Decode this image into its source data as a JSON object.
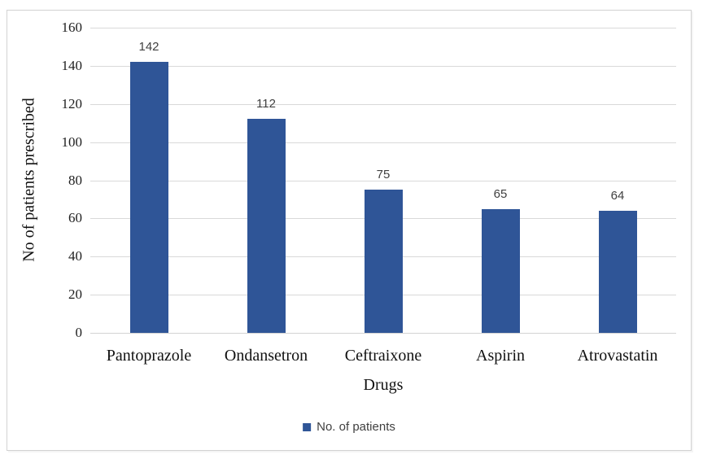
{
  "chart_data": {
    "type": "bar",
    "title": "",
    "categories": [
      "Pantoprazole",
      "Ondansetron",
      "Ceftraixone",
      "Aspirin",
      "Atrovastatin"
    ],
    "series": [
      {
        "name": "No. of patients",
        "values": [
          142,
          112,
          75,
          65,
          64
        ]
      }
    ],
    "data_labels": [
      142,
      112,
      75,
      65,
      64
    ],
    "xlabel": "Drugs",
    "ylabel": "No of patients prescribed",
    "ylim": [
      0,
      160
    ],
    "yticks": [
      0,
      20,
      40,
      60,
      80,
      100,
      120,
      140,
      160
    ],
    "grid": true,
    "legend": [
      "No. of patients"
    ],
    "legend_position": "bottom-center",
    "colors": {
      "bar": "#2f5597",
      "gridline": "#d9d9d9",
      "axis_line": "#d3d3d3",
      "data_label": "#404040",
      "tick_label": "#1f1f1f",
      "category_label": "#111111",
      "legend_text": "#404040",
      "frame_border": "#d2d2d2"
    }
  }
}
